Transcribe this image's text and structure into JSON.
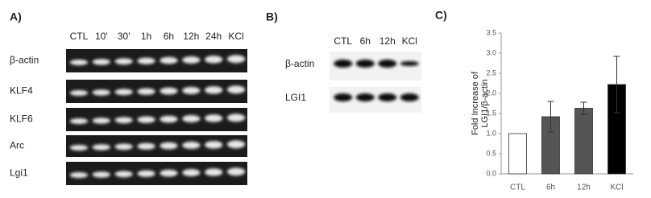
{
  "panel_a": {
    "label": "A)",
    "lanes": [
      "CTL",
      "10'",
      "30'",
      "1h",
      "6h",
      "12h",
      "24h",
      "KCl"
    ],
    "rows": [
      "β-actin",
      "KLF4",
      "KLF6",
      "Arc",
      "Lgi1"
    ]
  },
  "panel_b": {
    "label": "B)",
    "lanes": [
      "CTL",
      "6h",
      "12h",
      "KCl"
    ],
    "rows": [
      "β-actin",
      "LGI1"
    ]
  },
  "chart_data": {
    "type": "bar",
    "label": "C)",
    "ylabel": [
      "Fold Increase of",
      "LGI1/β-actin"
    ],
    "categories": [
      "CTL",
      "6h",
      "12h",
      "KCl"
    ],
    "values": [
      1.0,
      1.42,
      1.63,
      2.22
    ],
    "errors": [
      0,
      0.38,
      0.15,
      0.7
    ],
    "colors": [
      "#ffffff",
      "#555555",
      "#555555",
      "#000000"
    ],
    "ylim": [
      0,
      3.5
    ],
    "yticks": [
      {
        "value": 0,
        "label": "0.0"
      },
      {
        "value": 0.5,
        "label": "0.5"
      },
      {
        "value": 1,
        "label": "1.0"
      },
      {
        "value": 1.5,
        "label": "1.5"
      },
      {
        "value": 2,
        "label": "2.0"
      },
      {
        "value": 2.5,
        "label": "2.5"
      },
      {
        "value": 3,
        "label": "3.0"
      },
      {
        "value": 3.5,
        "label": "3.5"
      }
    ]
  }
}
